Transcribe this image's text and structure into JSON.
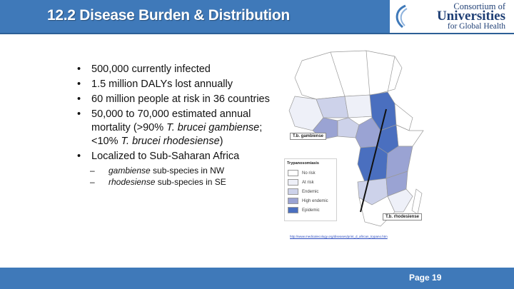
{
  "header": {
    "title": "12.2 Disease Burden & Distribution"
  },
  "logo": {
    "line1": "Consortium of",
    "line2": "Universities",
    "line3": "for Global Health"
  },
  "bullets": [
    {
      "segments": [
        "500,000 currently infected"
      ]
    },
    {
      "segments": [
        "1.5 million DALYs lost annually"
      ]
    },
    {
      "segments": [
        "60 million people at risk in 36 countries"
      ]
    },
    {
      "segments": [
        "50,000 to 70,000 estimated annual mortality (>90% ",
        "T. brucei gambiense",
        "; <10% ",
        "T. brucei rhodesiense",
        ")"
      ]
    },
    {
      "segments": [
        "Localized to Sub-Saharan Africa"
      ]
    }
  ],
  "sub_bullets": [
    {
      "italic": "gambiense",
      "rest": " sub-species in NW"
    },
    {
      "italic": "rhodesiense",
      "rest": " sub-species in SE"
    }
  ],
  "map": {
    "label_gambiense": "T.b. gambiense",
    "label_rhodesiense": "T.b. rhodesiense",
    "legend": {
      "title": "Trypanosomiasis",
      "items": [
        {
          "label": "No risk",
          "color": "#ffffff"
        },
        {
          "label": "At risk",
          "color": "#eef0f8"
        },
        {
          "label": "Endemic",
          "color": "#cdd2ea"
        },
        {
          "label": "High endemic",
          "color": "#9aa3d3"
        },
        {
          "label": "Epidemic",
          "color": "#4a6fbf"
        }
      ]
    },
    "source_url": "http://www.medicalecology.org/diseases/print_d_african_trypano.htm"
  },
  "footer": {
    "page": "Page 19"
  }
}
